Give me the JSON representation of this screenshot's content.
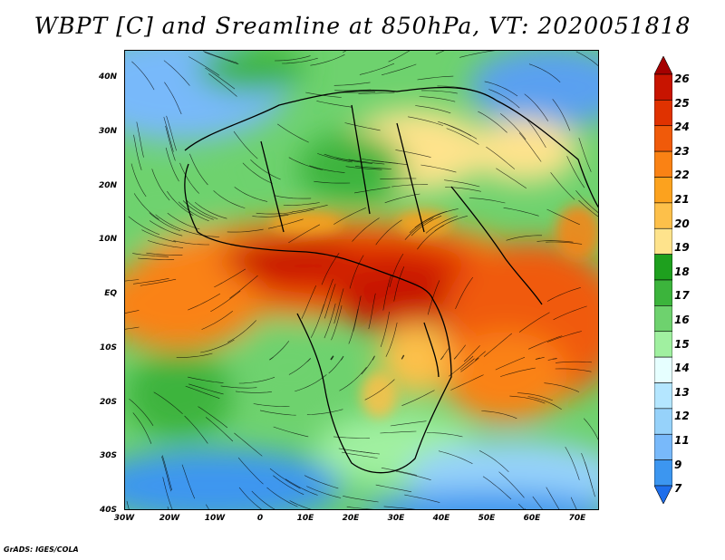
{
  "title": "WBPT [C] and Sreamline at 850hPa, VT: 2020051818",
  "credit": "GrADS: IGES/COLA",
  "lat_labels": [
    "40N",
    "30N",
    "20N",
    "10N",
    "EQ",
    "10S",
    "20S",
    "30S",
    "40S"
  ],
  "lon_labels": [
    "30W",
    "20W",
    "10W",
    "0",
    "10E",
    "20E",
    "30E",
    "40E",
    "50E",
    "60E",
    "70E"
  ],
  "colorbar": {
    "labels": [
      "26",
      "25",
      "24",
      "23",
      "22",
      "21",
      "20",
      "19",
      "18",
      "17",
      "16",
      "15",
      "14",
      "13",
      "12",
      "11",
      "9",
      "7"
    ],
    "colors": [
      "#a50000",
      "#c81400",
      "#e03200",
      "#f05a0a",
      "#fa8214",
      "#fca21e",
      "#fdc04a",
      "#fee38c",
      "#1ea01e",
      "#3cb43c",
      "#6ed26e",
      "#a0f0a0",
      "#e6ffff",
      "#b4e6ff",
      "#96d2fa",
      "#78b9fa",
      "#3c96f0",
      "#1e6eeb"
    ]
  }
}
